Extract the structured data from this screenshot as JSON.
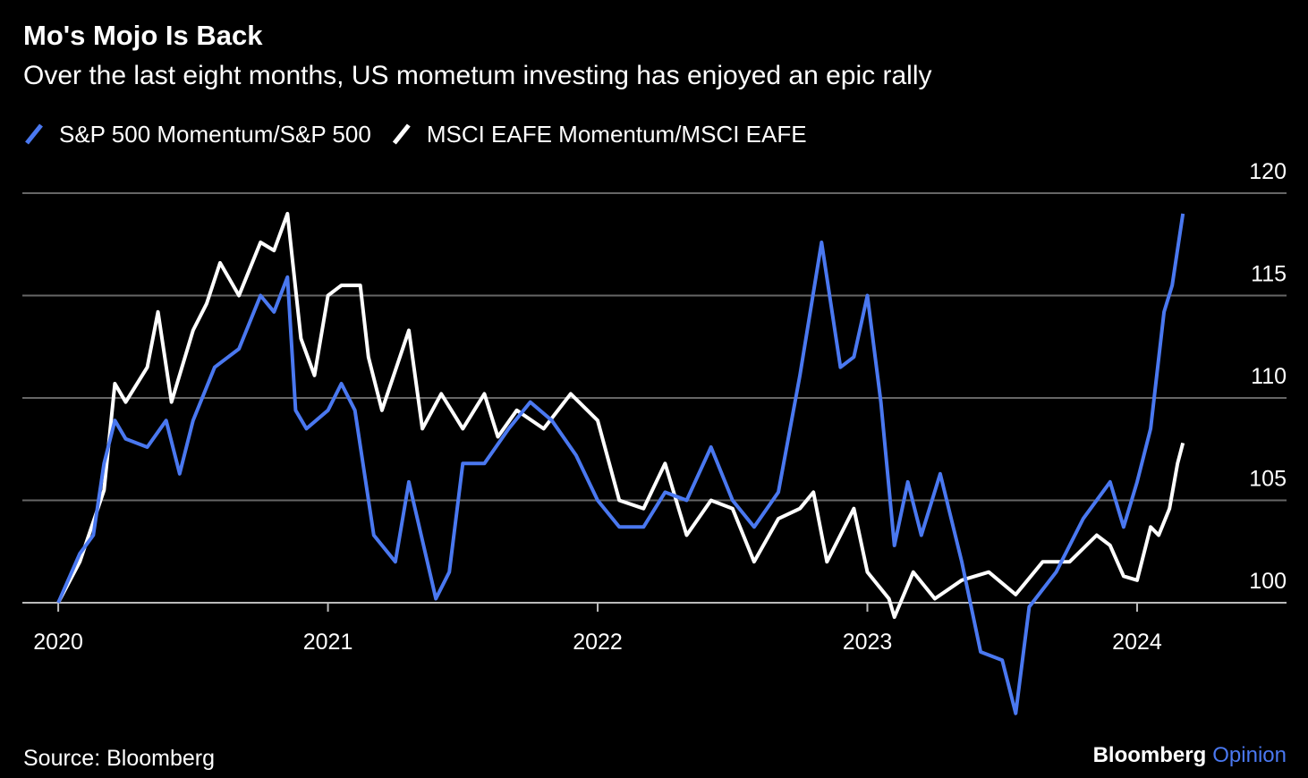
{
  "chart_data": {
    "type": "line",
    "title": "Mo's Mojo Is Back",
    "subtitle": "Over the last eight months, US mometum investing has enjoyed an epic rally",
    "source": "Source: Bloomberg",
    "brand": {
      "name": "Bloomberg",
      "suffix": "Opinion"
    },
    "xlim": [
      2019.867,
      2024.554
    ],
    "xticks": [
      2020,
      2021,
      2022,
      2023,
      2024
    ],
    "ylim": [
      94.5,
      120
    ],
    "yticks": [
      100,
      105,
      110,
      115,
      120
    ],
    "grid": true,
    "legend": "top-left",
    "series": [
      {
        "name": "S&P 500 Momentum/S&P 500",
        "color": "#4a78f0",
        "x": [
          2020.0,
          2020.08,
          2020.13,
          2020.17,
          2020.21,
          2020.25,
          2020.33,
          2020.4,
          2020.45,
          2020.5,
          2020.58,
          2020.67,
          2020.75,
          2020.8,
          2020.85,
          2020.88,
          2020.92,
          2021.0,
          2021.05,
          2021.1,
          2021.17,
          2021.25,
          2021.3,
          2021.4,
          2021.45,
          2021.5,
          2021.58,
          2021.67,
          2021.75,
          2021.83,
          2021.92,
          2022.0,
          2022.08,
          2022.17,
          2022.25,
          2022.33,
          2022.42,
          2022.5,
          2022.58,
          2022.67,
          2022.75,
          2022.83,
          2022.9,
          2022.95,
          2023.0,
          2023.05,
          2023.1,
          2023.15,
          2023.2,
          2023.27,
          2023.35,
          2023.42,
          2023.5,
          2023.55,
          2023.6,
          2023.7,
          2023.8,
          2023.9,
          2023.95,
          2024.0,
          2024.05,
          2024.1,
          2024.13,
          2024.17
        ],
        "values": [
          100,
          102.4,
          103.3,
          106.8,
          108.9,
          108.0,
          107.6,
          108.9,
          106.3,
          108.9,
          111.5,
          112.4,
          115.0,
          114.2,
          115.9,
          109.4,
          108.5,
          109.4,
          110.7,
          109.4,
          103.3,
          102.0,
          105.9,
          100.2,
          101.5,
          106.8,
          106.8,
          108.5,
          109.8,
          108.9,
          107.2,
          105.0,
          103.7,
          103.7,
          105.4,
          105.0,
          107.6,
          105.0,
          103.7,
          105.4,
          111.1,
          117.6,
          111.5,
          112.0,
          115.0,
          109.8,
          102.8,
          105.9,
          103.3,
          106.3,
          102.0,
          97.6,
          97.2,
          94.6,
          99.8,
          101.5,
          104.1,
          105.9,
          103.7,
          105.9,
          108.5,
          114.2,
          115.5,
          119.0
        ]
      },
      {
        "name": "MSCI EAFE Momentum/MSCI EAFE",
        "color": "#ffffff",
        "x": [
          2020.0,
          2020.08,
          2020.17,
          2020.21,
          2020.25,
          2020.33,
          2020.37,
          2020.42,
          2020.5,
          2020.55,
          2020.6,
          2020.67,
          2020.75,
          2020.8,
          2020.85,
          2020.9,
          2020.95,
          2021.0,
          2021.05,
          2021.12,
          2021.15,
          2021.2,
          2021.3,
          2021.35,
          2021.42,
          2021.5,
          2021.58,
          2021.63,
          2021.7,
          2021.8,
          2021.9,
          2022.0,
          2022.08,
          2022.17,
          2022.25,
          2022.33,
          2022.42,
          2022.5,
          2022.58,
          2022.67,
          2022.75,
          2022.8,
          2022.85,
          2022.95,
          2023.0,
          2023.08,
          2023.1,
          2023.17,
          2023.25,
          2023.35,
          2023.45,
          2023.55,
          2023.65,
          2023.75,
          2023.85,
          2023.9,
          2023.95,
          2024.0,
          2024.05,
          2024.08,
          2024.12,
          2024.15,
          2024.17
        ],
        "values": [
          100,
          102.0,
          105.5,
          110.7,
          109.8,
          111.5,
          114.2,
          109.8,
          113.3,
          114.6,
          116.6,
          115.0,
          117.6,
          117.2,
          119.0,
          112.9,
          111.1,
          115.0,
          115.5,
          115.5,
          112.0,
          109.4,
          113.3,
          108.5,
          110.2,
          108.5,
          110.2,
          108.1,
          109.4,
          108.5,
          110.2,
          108.9,
          105.0,
          104.6,
          106.8,
          103.3,
          105.0,
          104.6,
          102.0,
          104.1,
          104.6,
          105.4,
          102.0,
          104.6,
          101.5,
          100.2,
          99.3,
          101.5,
          100.2,
          101.1,
          101.5,
          100.4,
          102.0,
          102.0,
          103.3,
          102.8,
          101.3,
          101.1,
          103.7,
          103.3,
          104.6,
          106.8,
          107.8
        ]
      }
    ]
  }
}
